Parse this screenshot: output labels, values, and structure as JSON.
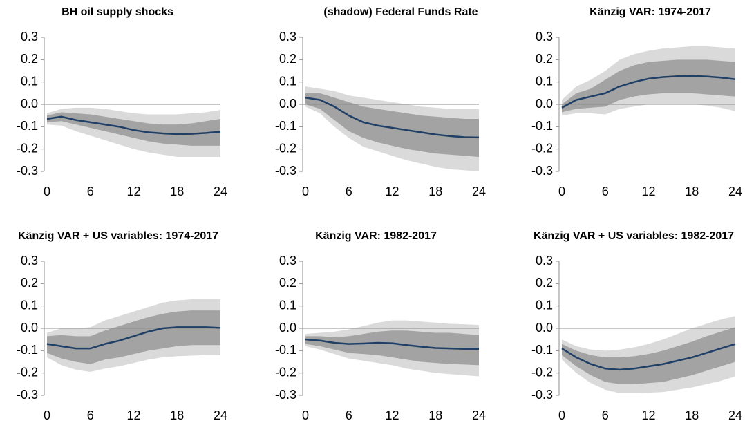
{
  "chart_data": [
    {
      "type": "line",
      "title": "BH oil supply shocks",
      "x": [
        0,
        2,
        4,
        6,
        8,
        10,
        12,
        14,
        16,
        18,
        20,
        22,
        24
      ],
      "xlim": [
        0,
        24
      ],
      "xticks": [
        0,
        6,
        12,
        18,
        24
      ],
      "ylim": [
        -0.3,
        0.3
      ],
      "yticks": [
        0.3,
        0.2,
        0.1,
        {
          "value": 0,
          "label": "0.0"
        },
        -0.1,
        -0.2,
        -0.3
      ],
      "zero_line": true,
      "color": "#1f3f66",
      "values": [
        -0.065,
        -0.055,
        -0.07,
        -0.08,
        -0.09,
        -0.1,
        -0.115,
        -0.125,
        -0.13,
        -0.133,
        -0.132,
        -0.128,
        -0.122
      ],
      "bands": [
        {
          "color": "#dadada",
          "lower": [
            -0.09,
            -0.095,
            -0.12,
            -0.14,
            -0.16,
            -0.18,
            -0.2,
            -0.215,
            -0.225,
            -0.235,
            -0.235,
            -0.235,
            -0.235
          ],
          "upper": [
            -0.04,
            -0.02,
            -0.015,
            -0.015,
            -0.02,
            -0.03,
            -0.04,
            -0.045,
            -0.045,
            -0.045,
            -0.04,
            -0.035,
            -0.025
          ]
        },
        {
          "color": "#a3a3a3",
          "lower": [
            -0.08,
            -0.075,
            -0.09,
            -0.105,
            -0.12,
            -0.135,
            -0.15,
            -0.165,
            -0.175,
            -0.18,
            -0.185,
            -0.185,
            -0.185
          ],
          "upper": [
            -0.05,
            -0.035,
            -0.04,
            -0.045,
            -0.055,
            -0.065,
            -0.075,
            -0.085,
            -0.09,
            -0.09,
            -0.085,
            -0.075,
            -0.065
          ]
        }
      ]
    },
    {
      "type": "line",
      "title": "(shadow) Federal Funds Rate",
      "x": [
        0,
        2,
        4,
        6,
        8,
        10,
        12,
        14,
        16,
        18,
        20,
        22,
        24
      ],
      "xlim": [
        0,
        24
      ],
      "xticks": [
        0,
        6,
        12,
        18,
        24
      ],
      "ylim": [
        -0.3,
        0.3
      ],
      "yticks": [
        0.3,
        0.2,
        0.1,
        {
          "value": 0,
          "label": "0.0"
        },
        -0.1,
        -0.2,
        -0.3
      ],
      "zero_line": true,
      "color": "#1f3f66",
      "values": [
        0.03,
        0.02,
        -0.01,
        -0.05,
        -0.08,
        -0.095,
        -0.105,
        -0.115,
        -0.125,
        -0.135,
        -0.142,
        -0.147,
        -0.148
      ],
      "bands": [
        {
          "color": "#dadada",
          "lower": [
            -0.01,
            -0.04,
            -0.1,
            -0.15,
            -0.19,
            -0.21,
            -0.23,
            -0.25,
            -0.265,
            -0.28,
            -0.29,
            -0.295,
            -0.3
          ],
          "upper": [
            0.08,
            0.07,
            0.06,
            0.04,
            0.03,
            0.02,
            0.01,
            0,
            -0.01,
            -0.015,
            -0.02,
            -0.02,
            -0.02
          ]
        },
        {
          "color": "#a3a3a3",
          "lower": [
            0,
            -0.02,
            -0.07,
            -0.12,
            -0.15,
            -0.17,
            -0.185,
            -0.2,
            -0.21,
            -0.22,
            -0.225,
            -0.23,
            -0.235
          ],
          "upper": [
            0.05,
            0.05,
            0.03,
            0.01,
            -0.01,
            -0.02,
            -0.03,
            -0.04,
            -0.05,
            -0.055,
            -0.06,
            -0.065,
            -0.065
          ]
        }
      ]
    },
    {
      "type": "line",
      "title": "Känzig VAR: 1974-2017",
      "x": [
        0,
        2,
        4,
        6,
        8,
        10,
        12,
        14,
        16,
        18,
        20,
        22,
        24
      ],
      "xlim": [
        0,
        24
      ],
      "xticks": [
        0,
        6,
        12,
        18,
        24
      ],
      "ylim": [
        -0.3,
        0.3
      ],
      "yticks": [
        0.3,
        0.2,
        0.1,
        {
          "value": 0,
          "label": "0.0"
        },
        -0.1,
        -0.2,
        -0.3
      ],
      "zero_line": true,
      "color": "#1f3f66",
      "values": [
        -0.015,
        0.02,
        0.035,
        0.05,
        0.08,
        0.1,
        0.115,
        0.122,
        0.126,
        0.127,
        0.125,
        0.12,
        0.112
      ],
      "bands": [
        {
          "color": "#dadada",
          "lower": [
            -0.05,
            -0.04,
            -0.04,
            -0.045,
            -0.02,
            -0.01,
            0,
            0,
            0,
            0,
            -0.005,
            -0.015,
            -0.03
          ],
          "upper": [
            0.02,
            0.08,
            0.11,
            0.15,
            0.2,
            0.225,
            0.24,
            0.25,
            0.255,
            0.26,
            0.26,
            0.255,
            0.25
          ]
        },
        {
          "color": "#a3a3a3",
          "lower": [
            -0.035,
            -0.02,
            -0.015,
            -0.01,
            0.02,
            0.035,
            0.045,
            0.05,
            0.05,
            0.05,
            0.045,
            0.04,
            0.035
          ],
          "upper": [
            0,
            0.05,
            0.07,
            0.11,
            0.15,
            0.175,
            0.19,
            0.195,
            0.2,
            0.2,
            0.2,
            0.195,
            0.19
          ]
        }
      ]
    },
    {
      "type": "line",
      "title": "Känzig VAR + US variables: 1974-2017",
      "x": [
        0,
        2,
        4,
        6,
        8,
        10,
        12,
        14,
        16,
        18,
        20,
        22,
        24
      ],
      "xlim": [
        0,
        24
      ],
      "xticks": [
        0,
        6,
        12,
        18,
        24
      ],
      "ylim": [
        -0.3,
        0.3
      ],
      "yticks": [
        0.3,
        0.2,
        0.1,
        {
          "value": 0,
          "label": "0.0"
        },
        -0.1,
        -0.2,
        -0.3
      ],
      "zero_line": true,
      "color": "#1f3f66",
      "values": [
        -0.07,
        -0.08,
        -0.09,
        -0.09,
        -0.07,
        -0.055,
        -0.035,
        -0.015,
        0,
        0.005,
        0.005,
        0.005,
        0.002
      ],
      "bands": [
        {
          "color": "#dadada",
          "lower": [
            -0.13,
            -0.165,
            -0.185,
            -0.195,
            -0.18,
            -0.17,
            -0.155,
            -0.14,
            -0.13,
            -0.125,
            -0.122,
            -0.12,
            -0.12
          ],
          "upper": [
            -0.02,
            0,
            0,
            0.005,
            0.035,
            0.055,
            0.075,
            0.095,
            0.115,
            0.125,
            0.13,
            0.13,
            0.13
          ]
        },
        {
          "color": "#a3a3a3",
          "lower": [
            -0.11,
            -0.135,
            -0.15,
            -0.16,
            -0.14,
            -0.13,
            -0.115,
            -0.1,
            -0.09,
            -0.08,
            -0.075,
            -0.075,
            -0.075
          ],
          "upper": [
            -0.035,
            -0.03,
            -0.035,
            -0.035,
            -0.01,
            0.01,
            0.03,
            0.05,
            0.065,
            0.075,
            0.08,
            0.08,
            0.08
          ]
        }
      ]
    },
    {
      "type": "line",
      "title": "Känzig VAR: 1982-2017",
      "x": [
        0,
        2,
        4,
        6,
        8,
        10,
        12,
        14,
        16,
        18,
        20,
        22,
        24
      ],
      "xlim": [
        0,
        24
      ],
      "xticks": [
        0,
        6,
        12,
        18,
        24
      ],
      "ylim": [
        -0.3,
        0.3
      ],
      "yticks": [
        0.3,
        0.2,
        0.1,
        {
          "value": 0,
          "label": "0.0"
        },
        -0.1,
        -0.2,
        -0.3
      ],
      "zero_line": true,
      "color": "#1f3f66",
      "values": [
        -0.05,
        -0.055,
        -0.065,
        -0.07,
        -0.068,
        -0.065,
        -0.067,
        -0.075,
        -0.082,
        -0.088,
        -0.09,
        -0.092,
        -0.092
      ],
      "bands": [
        {
          "color": "#dadada",
          "lower": [
            -0.08,
            -0.095,
            -0.115,
            -0.135,
            -0.145,
            -0.155,
            -0.165,
            -0.18,
            -0.19,
            -0.2,
            -0.205,
            -0.21,
            -0.215
          ],
          "upper": [
            -0.025,
            -0.02,
            -0.015,
            -0.005,
            0.01,
            0.025,
            0.035,
            0.035,
            0.03,
            0.025,
            0.02,
            0.018,
            0.015
          ]
        },
        {
          "color": "#a3a3a3",
          "lower": [
            -0.07,
            -0.08,
            -0.095,
            -0.11,
            -0.115,
            -0.12,
            -0.13,
            -0.14,
            -0.15,
            -0.155,
            -0.16,
            -0.162,
            -0.165
          ],
          "upper": [
            -0.035,
            -0.035,
            -0.04,
            -0.035,
            -0.025,
            -0.015,
            -0.01,
            -0.01,
            -0.015,
            -0.02,
            -0.02,
            -0.025,
            -0.03
          ]
        }
      ]
    },
    {
      "type": "line",
      "title": "Känzig VAR + US variables: 1982-2017",
      "x": [
        0,
        2,
        4,
        6,
        8,
        10,
        12,
        14,
        16,
        18,
        20,
        22,
        24
      ],
      "xlim": [
        0,
        24
      ],
      "xticks": [
        0,
        6,
        12,
        18,
        24
      ],
      "ylim": [
        -0.3,
        0.3
      ],
      "yticks": [
        0.3,
        0.2,
        0.1,
        {
          "value": 0,
          "label": "0.0"
        },
        -0.1,
        -0.2,
        -0.3
      ],
      "zero_line": true,
      "color": "#1f3f66",
      "values": [
        -0.09,
        -0.13,
        -0.16,
        -0.18,
        -0.185,
        -0.18,
        -0.17,
        -0.16,
        -0.145,
        -0.13,
        -0.11,
        -0.09,
        -0.07
      ],
      "bands": [
        {
          "color": "#dadada",
          "lower": [
            -0.14,
            -0.2,
            -0.245,
            -0.275,
            -0.29,
            -0.29,
            -0.288,
            -0.285,
            -0.275,
            -0.265,
            -0.25,
            -0.235,
            -0.215
          ],
          "upper": [
            -0.05,
            -0.08,
            -0.095,
            -0.1,
            -0.095,
            -0.085,
            -0.07,
            -0.05,
            -0.025,
            0,
            0.02,
            0.04,
            0.055
          ]
        },
        {
          "color": "#a3a3a3",
          "lower": [
            -0.12,
            -0.17,
            -0.21,
            -0.24,
            -0.25,
            -0.25,
            -0.245,
            -0.24,
            -0.225,
            -0.21,
            -0.19,
            -0.17,
            -0.15
          ],
          "upper": [
            -0.07,
            -0.1,
            -0.12,
            -0.13,
            -0.13,
            -0.125,
            -0.115,
            -0.1,
            -0.08,
            -0.06,
            -0.035,
            -0.015,
            0.005
          ]
        }
      ]
    }
  ]
}
